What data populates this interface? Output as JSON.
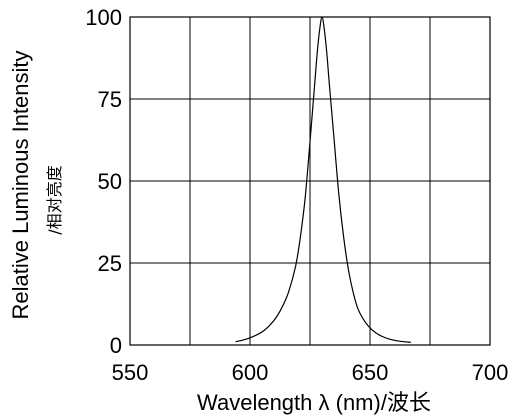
{
  "chart_data": {
    "type": "line",
    "title": "",
    "xlabel": "Wavelength λ (nm)/波长",
    "ylabel": "Relative Luminous Intensity",
    "ylabel_sub": "/相对亮度",
    "xlim": [
      550,
      700
    ],
    "ylim": [
      0,
      100
    ],
    "x_ticks": [
      550,
      600,
      650,
      700
    ],
    "y_ticks": [
      0,
      25,
      50,
      75,
      100
    ],
    "x_grid": [
      550,
      575,
      600,
      625,
      650,
      675,
      700
    ],
    "y_grid": [
      0,
      25,
      50,
      75,
      100
    ],
    "grid": true,
    "series": [
      {
        "x": [
          594,
          598,
          602,
          606,
          610,
          613,
          616,
          619,
          621,
          623,
          625,
          627,
          628,
          629,
          630,
          631,
          632,
          633,
          635,
          637,
          639,
          641,
          643,
          645,
          648,
          651,
          654,
          658,
          662,
          667
        ],
        "values": [
          1,
          1.7,
          2.8,
          4.5,
          7.5,
          11,
          16,
          24,
          33,
          45,
          62,
          80,
          89,
          96,
          100,
          96,
          89,
          80,
          63,
          46,
          33,
          23,
          16,
          11,
          7,
          4.5,
          3,
          1.8,
          1.2,
          0.8
        ]
      }
    ]
  }
}
